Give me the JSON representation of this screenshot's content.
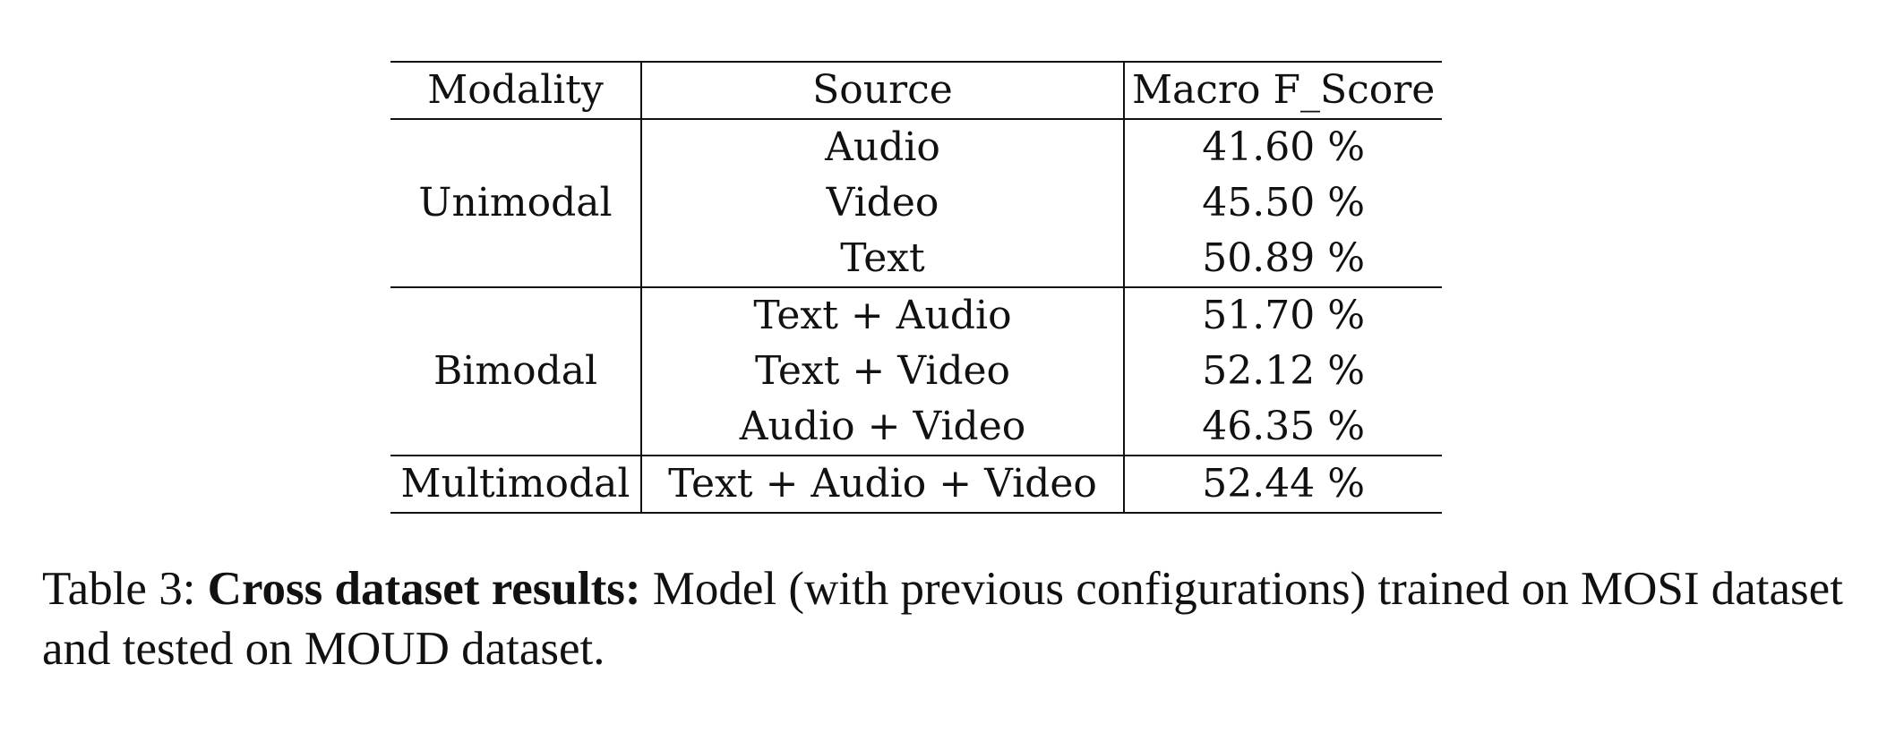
{
  "table": {
    "headers": [
      "Modality",
      "Source",
      "Macro F_Score"
    ],
    "groups": [
      {
        "modality": "Unimodal",
        "rows": [
          {
            "source": "Audio",
            "score": "41.60 %"
          },
          {
            "source": "Video",
            "score": "45.50 %"
          },
          {
            "source": "Text",
            "score": "50.89 %"
          }
        ]
      },
      {
        "modality": "Bimodal",
        "rows": [
          {
            "source": "Text + Audio",
            "score": "51.70 %"
          },
          {
            "source": "Text + Video",
            "score": "52.12 %"
          },
          {
            "source": "Audio + Video",
            "score": "46.35 %"
          }
        ]
      },
      {
        "modality": "Multimodal",
        "rows": [
          {
            "source": "Text + Audio + Video",
            "score": "52.44 %"
          }
        ]
      }
    ]
  },
  "caption": {
    "label": "Table 3:",
    "bold": "Cross dataset results:",
    "text": "Model (with previous configurations) trained on MOSI dataset and tested on MOUD dataset."
  }
}
